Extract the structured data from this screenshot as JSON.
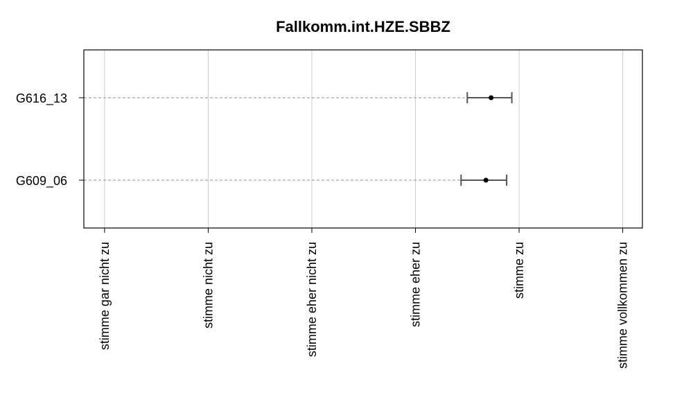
{
  "chart_data": {
    "type": "dot-errorbar",
    "title": "Fallkomm.int.HZE.SBBZ",
    "orientation": "horizontal",
    "x_categories": [
      "stimme gar nicht zu",
      "stimme nicht zu",
      "stimme eher nicht zu",
      "stimme eher zu",
      "stimme zu",
      "stimme vollkommen zu"
    ],
    "xlim": [
      0.8,
      6.19
    ],
    "grid": true,
    "series": [
      {
        "label": "G616_13",
        "mean": 4.73,
        "lower": 4.5,
        "upper": 4.93
      },
      {
        "label": "G609_06",
        "mean": 4.68,
        "lower": 4.44,
        "upper": 4.88
      }
    ]
  }
}
